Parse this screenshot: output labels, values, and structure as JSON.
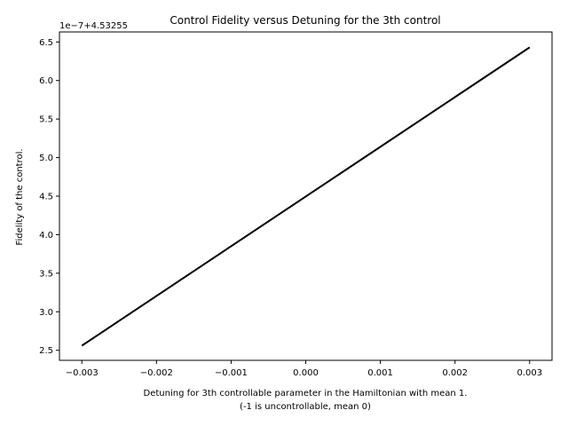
{
  "chart_data": {
    "type": "line",
    "title": "Control Fidelity versus Detuning for the 3th control",
    "xlabel_line1": "Detuning for 3th controllable parameter in the Hamiltonian with mean 1.",
    "xlabel_line2": "(-1 is uncontrollable, mean 0)",
    "ylabel": "Fidelity of the control.",
    "y_offset_label": "1e−7+4.53255",
    "xlim": [
      -0.0033,
      0.0033
    ],
    "ylim": [
      2.37,
      6.63
    ],
    "xticks": [
      -0.003,
      -0.002,
      -0.001,
      0.0,
      0.001,
      0.002,
      0.003
    ],
    "xtick_labels": [
      "−0.003",
      "−0.002",
      "−0.001",
      "0.000",
      "0.001",
      "0.002",
      "0.003"
    ],
    "yticks": [
      2.5,
      3.0,
      3.5,
      4.0,
      4.5,
      5.0,
      5.5,
      6.0,
      6.5
    ],
    "ytick_labels": [
      "2.5",
      "3.0",
      "3.5",
      "4.0",
      "4.5",
      "5.0",
      "5.5",
      "6.0",
      "6.5"
    ],
    "grid": false,
    "line_color": "#000000",
    "series": [
      {
        "x": [
          -0.003,
          0.003
        ],
        "y": [
          2.56,
          6.43
        ]
      }
    ]
  }
}
